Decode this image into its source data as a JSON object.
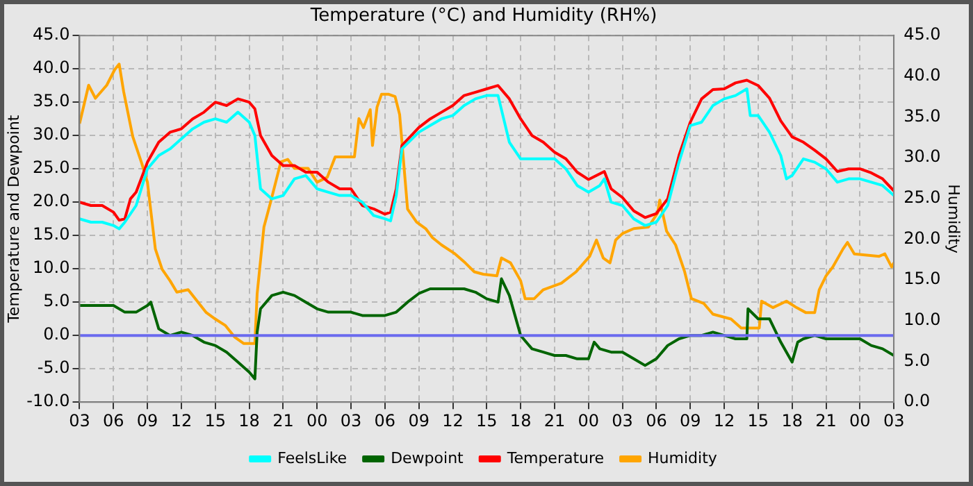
{
  "chart_data": {
    "type": "line",
    "title": "Temperature (°C) and Humidity (RH%)",
    "ylabel": "Temperature and Dewpoint",
    "y2label": "Humidity",
    "xlim": [
      3,
      75
    ],
    "xticks": [
      {
        "value": 3,
        "label": "03"
      },
      {
        "value": 6,
        "label": "06"
      },
      {
        "value": 9,
        "label": "09"
      },
      12,
      15,
      18,
      21,
      {
        "value": 24,
        "label": "00"
      },
      {
        "value": 27,
        "label": "03"
      },
      {
        "value": 30,
        "label": "06"
      },
      {
        "value": 33,
        "label": "09"
      },
      {
        "value": 36,
        "label": "12"
      },
      {
        "value": 39,
        "label": "15"
      },
      {
        "value": 42,
        "label": "18"
      },
      {
        "value": 45,
        "label": "21"
      },
      {
        "value": 48,
        "label": "00"
      },
      {
        "value": 51,
        "label": "03"
      },
      {
        "value": 54,
        "label": "06"
      },
      {
        "value": 57,
        "label": "09"
      },
      {
        "value": 60,
        "label": "12"
      },
      {
        "value": 63,
        "label": "15"
      },
      {
        "value": 66,
        "label": "18"
      },
      {
        "value": 69,
        "label": "21"
      },
      {
        "value": 72,
        "label": "00"
      },
      {
        "value": 75,
        "label": "03"
      }
    ],
    "ylim": [
      -10,
      45
    ],
    "yticks": [
      {
        "value": -10,
        "label": "-10.0"
      },
      {
        "value": -5,
        "label": "-5.0"
      },
      {
        "value": 0,
        "label": "0.0"
      },
      {
        "value": 5,
        "label": "5.0"
      },
      {
        "value": 10,
        "label": "10.0"
      },
      {
        "value": 15,
        "label": "15.0"
      },
      {
        "value": 20,
        "label": "20.0"
      },
      {
        "value": 25,
        "label": "25.0"
      },
      {
        "value": 30,
        "label": "30.0"
      },
      {
        "value": 35,
        "label": "35.0"
      },
      {
        "value": 40,
        "label": "40.0"
      },
      {
        "value": 45,
        "label": "45.0"
      }
    ],
    "y2lim": [
      0,
      45
    ],
    "y2ticks": [
      {
        "value": 0,
        "label": "0.0"
      },
      {
        "value": 5,
        "label": "5.0"
      },
      {
        "value": 10,
        "label": "10.0"
      },
      {
        "value": 15,
        "label": "15.0"
      },
      {
        "value": 20,
        "label": "20.0"
      },
      {
        "value": 25,
        "label": "25.0"
      },
      {
        "value": 30,
        "label": "30.0"
      },
      {
        "value": 35,
        "label": "35.0"
      },
      {
        "value": 40,
        "label": "40.0"
      },
      {
        "value": 45,
        "label": "45.0"
      }
    ],
    "grid": true,
    "legend": "bottom",
    "ref_lines": [
      {
        "axis": "y",
        "value": 0,
        "color": "#6a6aee"
      }
    ],
    "series": [
      {
        "name": "FeelsLike",
        "color": "#00ffff",
        "x": [
          3,
          4,
          5,
          6,
          6.5,
          7,
          8,
          9,
          10,
          11,
          12,
          13,
          14,
          15,
          16,
          17,
          18,
          18.5,
          19,
          20,
          21,
          22,
          23,
          24,
          25,
          26,
          27,
          28,
          29,
          30,
          30.5,
          31,
          31.5,
          33,
          34,
          35,
          36,
          37,
          38,
          39,
          40,
          41,
          42,
          43,
          44,
          45,
          46,
          47,
          48,
          49,
          49.4,
          50,
          51,
          52,
          53,
          54,
          55,
          56,
          57,
          58,
          59,
          60,
          61,
          62,
          62.3,
          63,
          64,
          65,
          65.5,
          66,
          67,
          68,
          69,
          70,
          71,
          72,
          73,
          74,
          75
        ],
        "values": [
          17.5,
          17,
          17,
          16.5,
          16,
          17,
          19.5,
          25,
          27,
          28,
          29.5,
          31,
          32,
          32.5,
          32,
          33.5,
          32,
          30,
          22,
          20.5,
          21,
          23.5,
          24,
          22,
          21.5,
          21,
          21,
          20,
          18,
          17.5,
          17.2,
          21,
          28,
          30.5,
          31.5,
          32.5,
          33,
          34.5,
          35.5,
          36,
          36,
          29,
          26.5,
          26.5,
          26.5,
          26.5,
          25,
          22.5,
          21.5,
          22.5,
          23.5,
          20,
          19.5,
          17.5,
          16.5,
          17,
          19.5,
          26,
          31.5,
          32,
          34.5,
          35.5,
          36,
          37,
          33,
          33,
          30.5,
          27,
          23.5,
          24,
          26.5,
          26,
          25,
          23,
          23.5,
          23.5,
          23,
          22.5,
          21
        ]
      },
      {
        "name": "Dewpoint",
        "color": "#006400",
        "x": [
          3,
          4,
          5,
          6,
          7,
          8,
          9,
          9.3,
          10,
          11,
          12,
          13,
          14,
          15,
          16,
          17,
          18,
          18.5,
          18.7,
          19,
          20,
          21,
          22,
          23,
          24,
          25,
          26,
          27,
          28,
          29,
          30,
          31,
          32,
          33,
          34,
          35,
          36,
          37,
          38,
          39,
          40,
          40.3,
          41,
          42,
          43,
          44,
          45,
          46,
          47,
          48,
          48.5,
          49,
          50,
          51,
          52,
          53,
          54,
          55,
          56,
          57,
          58,
          59,
          60,
          61,
          62,
          62.1,
          63,
          64,
          65,
          66,
          66.5,
          67,
          68,
          69,
          70,
          71,
          72,
          73,
          74,
          75
        ],
        "values": [
          4.5,
          4.5,
          4.5,
          4.5,
          3.5,
          3.5,
          4.5,
          5,
          1,
          0,
          0.5,
          0,
          -1,
          -1.5,
          -2.5,
          -4,
          -5.5,
          -6.5,
          0.5,
          4,
          6,
          6.5,
          6,
          5,
          4,
          3.5,
          3.5,
          3.5,
          3,
          3,
          3,
          3.5,
          5,
          6.3,
          7,
          7,
          7,
          7,
          6.5,
          5.5,
          5,
          8.5,
          6,
          0,
          -2,
          -2.5,
          -3,
          -3,
          -3.5,
          -3.5,
          -1,
          -2,
          -2.5,
          -2.5,
          -3.5,
          -4.5,
          -3.5,
          -1.5,
          -0.5,
          0,
          0,
          0.5,
          0,
          -0.5,
          -0.5,
          4,
          2.5,
          2.5,
          -1,
          -4,
          -1,
          -0.5,
          0,
          -0.5,
          -0.5,
          -0.5,
          -0.5,
          -1.5,
          -2,
          -3
        ]
      },
      {
        "name": "Temperature",
        "color": "#ff0000",
        "x": [
          3,
          4,
          5,
          6,
          6.5,
          7,
          7.5,
          8,
          9,
          10,
          11,
          12,
          13,
          14,
          15,
          16,
          17,
          18,
          18.5,
          19,
          20,
          21,
          22,
          23,
          24,
          25,
          26,
          27,
          28,
          29,
          30,
          30.5,
          31,
          31.5,
          33,
          34,
          35,
          36,
          37,
          38,
          39,
          40,
          41,
          42,
          43,
          44,
          45,
          46,
          47,
          48,
          49.4,
          50,
          51,
          52,
          53,
          54,
          55,
          56,
          57,
          58,
          59,
          60,
          61,
          62,
          63,
          64,
          65,
          66,
          67,
          68,
          69,
          70,
          71,
          72,
          73,
          74,
          75
        ],
        "values": [
          20,
          19.5,
          19.5,
          18.5,
          17.3,
          17.5,
          20.5,
          21.5,
          26,
          29,
          30.5,
          31,
          32.5,
          33.5,
          35,
          34.5,
          35.5,
          35,
          34,
          30,
          27,
          25.5,
          25.5,
          24.5,
          24.5,
          23,
          22,
          22,
          19.5,
          19,
          18.2,
          18.5,
          22,
          28.5,
          31.2,
          32.5,
          33.5,
          34.5,
          36,
          36.5,
          37,
          37.5,
          35.5,
          32.5,
          30,
          29,
          27.5,
          26.5,
          24.5,
          23.4,
          24.6,
          22,
          20.7,
          18.7,
          17.7,
          18.3,
          20.5,
          27,
          32,
          35.5,
          36.9,
          37,
          37.9,
          38.3,
          37.5,
          35.6,
          32.2,
          29.8,
          29,
          27.8,
          26.5,
          24.6,
          25,
          25,
          24.4,
          23.5,
          21.7
        ]
      },
      {
        "name": "Humidity",
        "color": "#ffa500",
        "axis": "y2",
        "x": [
          3,
          3.8,
          4.4,
          5.4,
          6.1,
          6.5,
          6.9,
          7.7,
          8.5,
          9,
          9.7,
          10.3,
          11,
          11.6,
          12.6,
          13.4,
          14.2,
          15,
          15.9,
          16.7,
          17.5,
          18.5,
          18.7,
          19.3,
          19.9,
          20.8,
          21.4,
          22,
          23.2,
          24,
          24.9,
          25.6,
          27.3,
          27.7,
          28.1,
          28.7,
          28.9,
          29.3,
          29.7,
          30.3,
          30.9,
          31.3,
          32,
          32.8,
          33.6,
          34.2,
          35,
          36.2,
          37.1,
          37.9,
          38.7,
          39.9,
          40.3,
          41.1,
          42,
          42.4,
          43.2,
          44,
          45.6,
          46.9,
          48.1,
          48.7,
          49.3,
          49.9,
          50.4,
          51,
          52,
          53.3,
          54.1,
          54.3,
          54.9,
          55.7,
          56.5,
          57.1,
          58.2,
          59,
          60.6,
          61.5,
          63.1,
          63.3,
          64.3,
          65.5,
          66.4,
          67.2,
          68,
          68.4,
          69,
          69.6,
          70.5,
          70.9,
          71.5,
          73.7,
          74.2,
          74.8,
          75
        ],
        "values": [
          34.2,
          38.9,
          37.3,
          38.9,
          40.8,
          41.5,
          38.1,
          32.6,
          29.3,
          27,
          18.8,
          16.3,
          14.9,
          13.5,
          13.8,
          12.4,
          11,
          10.2,
          9.4,
          8,
          7.2,
          7.2,
          13.3,
          21.5,
          24.6,
          29.5,
          29.8,
          28.7,
          28.7,
          27,
          27.6,
          30.1,
          30.1,
          34.8,
          33.7,
          35.9,
          31.5,
          36.2,
          37.8,
          37.8,
          37.5,
          35.3,
          23.7,
          22.1,
          21.3,
          20.2,
          19.3,
          18.2,
          17.1,
          16,
          15.7,
          15.5,
          17.7,
          17.1,
          14.9,
          12.7,
          12.7,
          13.8,
          14.6,
          16,
          17.9,
          19.9,
          17.7,
          17.1,
          19.9,
          20.7,
          21.3,
          21.5,
          23.2,
          24.8,
          21,
          19.3,
          16,
          12.7,
          12.1,
          10.8,
          10.2,
          9.1,
          9.1,
          12.4,
          11.6,
          12.4,
          11.6,
          11,
          11,
          13.8,
          15.5,
          16.6,
          18.8,
          19.6,
          18.2,
          17.9,
          18.2,
          16.6,
          17.1
        ]
      }
    ]
  }
}
